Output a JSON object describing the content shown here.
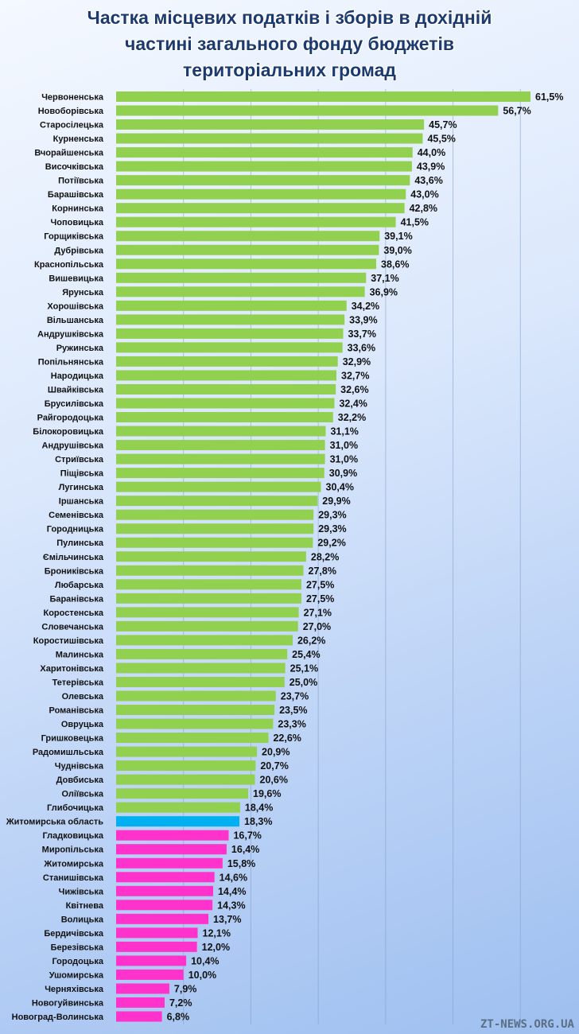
{
  "chart_data": {
    "type": "bar",
    "orientation": "horizontal",
    "title_lines": [
      "Частка місцевих податків і зборів в дохідній",
      "частині загального фонду бюджетів",
      "територіальних громад"
    ],
    "xlim": [
      0,
      65
    ],
    "grid": true,
    "colors": {
      "above": "#92d050",
      "region": "#00b0f0",
      "below": "#ff33cc"
    },
    "categories": [
      "Червоненська",
      "Новоборівська",
      "Старосілецька",
      "Курненська",
      "Вчорайшенська",
      "Височківська",
      "Потіївська",
      "Барашівська",
      "Корнинська",
      "Чоповицька",
      "Горщиківська",
      "Дубрівська",
      "Краснопільська",
      "Вишевицька",
      "Ярунська",
      "Хорошівська",
      "Вільшанська",
      "Андрушківська",
      "Ружинська",
      "Попільнянська",
      "Народицька",
      "Швайківська",
      "Брусилівська",
      "Райгородоцька",
      "Білокоровицька",
      "Андрушівська",
      "Стриївська",
      "Піщівська",
      "Лугинська",
      "Іршанська",
      "Семенівська",
      "Городницька",
      "Пулинська",
      "Ємільчинська",
      "Брониківська",
      "Любарська",
      "Баранівська",
      "Коростенська",
      "Словечанська",
      "Коростишівська",
      "Малинська",
      "Харитонівська",
      "Тетерівська",
      "Олевська",
      "Романівська",
      "Овруцька",
      "Гришковецька",
      "Радомишльська",
      "Чуднівська",
      "Довбиська",
      "Оліївська",
      "Глибочицька",
      "Житомирська область",
      "Гладковицька",
      "Миропільська",
      "Житомирська",
      "Станишівська",
      "Чижівська",
      "Квітнева",
      "Волицька",
      "Бердичівська",
      "Березівська",
      "Городоцька",
      "Ушомирська",
      "Черняхівська",
      "Новогуйвинська",
      "Новоград-Волинська"
    ],
    "values": [
      61.5,
      56.7,
      45.7,
      45.5,
      44.0,
      43.9,
      43.6,
      43.0,
      42.8,
      41.5,
      39.1,
      39.0,
      38.6,
      37.1,
      36.9,
      34.2,
      33.9,
      33.7,
      33.6,
      32.9,
      32.7,
      32.6,
      32.4,
      32.2,
      31.1,
      31.0,
      31.0,
      30.9,
      30.4,
      29.9,
      29.3,
      29.3,
      29.2,
      28.2,
      27.8,
      27.5,
      27.5,
      27.1,
      27.0,
      26.2,
      25.4,
      25.1,
      25.0,
      23.7,
      23.5,
      23.3,
      22.6,
      20.9,
      20.7,
      20.6,
      19.6,
      18.4,
      18.3,
      16.7,
      16.4,
      15.8,
      14.6,
      14.4,
      14.3,
      13.7,
      12.1,
      12.0,
      10.4,
      10.0,
      7.9,
      7.2,
      6.8
    ],
    "value_labels": [
      "61,5%",
      "56,7%",
      "45,7%",
      "45,5%",
      "44,0%",
      "43,9%",
      "43,6%",
      "43,0%",
      "42,8%",
      "41,5%",
      "39,1%",
      "39,0%",
      "38,6%",
      "37,1%",
      "36,9%",
      "34,2%",
      "33,9%",
      "33,7%",
      "33,6%",
      "32,9%",
      "32,7%",
      "32,6%",
      "32,4%",
      "32,2%",
      "31,1%",
      "31,0%",
      "31,0%",
      "30,9%",
      "30,4%",
      "29,9%",
      "29,3%",
      "29,3%",
      "29,2%",
      "28,2%",
      "27,8%",
      "27,5%",
      "27,5%",
      "27,1%",
      "27,0%",
      "26,2%",
      "25,4%",
      "25,1%",
      "25,0%",
      "23,7%",
      "23,5%",
      "23,3%",
      "22,6%",
      "20,9%",
      "20,7%",
      "20,6%",
      "19,6%",
      "18,4%",
      "18,3%",
      "16,7%",
      "16,4%",
      "15,8%",
      "14,6%",
      "14,4%",
      "14,3%",
      "13,7%",
      "12,1%",
      "12,0%",
      "10,4%",
      "10,0%",
      "7,9%",
      "7,2%",
      "6,8%"
    ],
    "highlight_category": "Житомирська область"
  },
  "watermark": "ZT-NEWS.ORG.UA"
}
